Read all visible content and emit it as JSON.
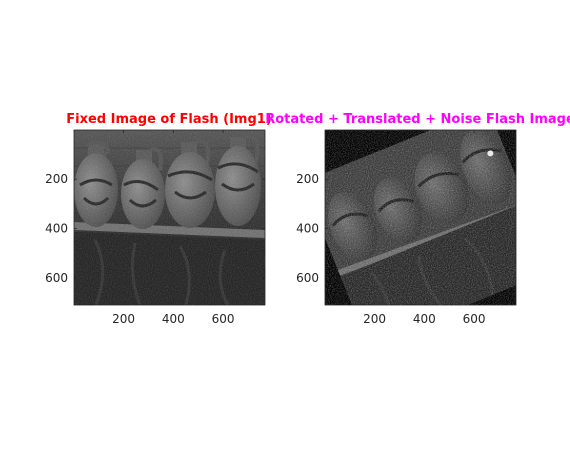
{
  "figure": {
    "background": "#ffffff"
  },
  "chart_data": [
    {
      "type": "image",
      "title": "Fixed Image of Flash (Img1)",
      "title_color": "#ff0000",
      "xlabel": "",
      "ylabel": "",
      "xlim": [
        0.5,
        768.5
      ],
      "ylim": [
        0.5,
        710.5
      ],
      "y_reversed": true,
      "xticks": [
        200,
        400,
        600
      ],
      "xtick_labels": [
        "200",
        "400",
        "600"
      ],
      "yticks": [
        200,
        400,
        600
      ],
      "ytick_labels": [
        "200",
        "400",
        "600"
      ],
      "image_content": "grayscale photo of four decorated stoneware jugs on a shelf above dark fabric"
    },
    {
      "type": "image",
      "title": "Rotated + Translated + Noise Flash Image",
      "title_color": "#ff00ff",
      "xlabel": "",
      "ylabel": "",
      "xlim": [
        0.5,
        768.5
      ],
      "ylim": [
        0.5,
        710.5
      ],
      "y_reversed": true,
      "rotation_deg": 22,
      "xticks": [
        200,
        400,
        600
      ],
      "xtick_labels": [
        "200",
        "400",
        "600"
      ],
      "yticks": [
        200,
        400,
        600
      ],
      "ytick_labels": [
        "200",
        "400",
        "600"
      ],
      "image_content": "rotated, translated, noisy version of the jug photo on a black background"
    }
  ]
}
